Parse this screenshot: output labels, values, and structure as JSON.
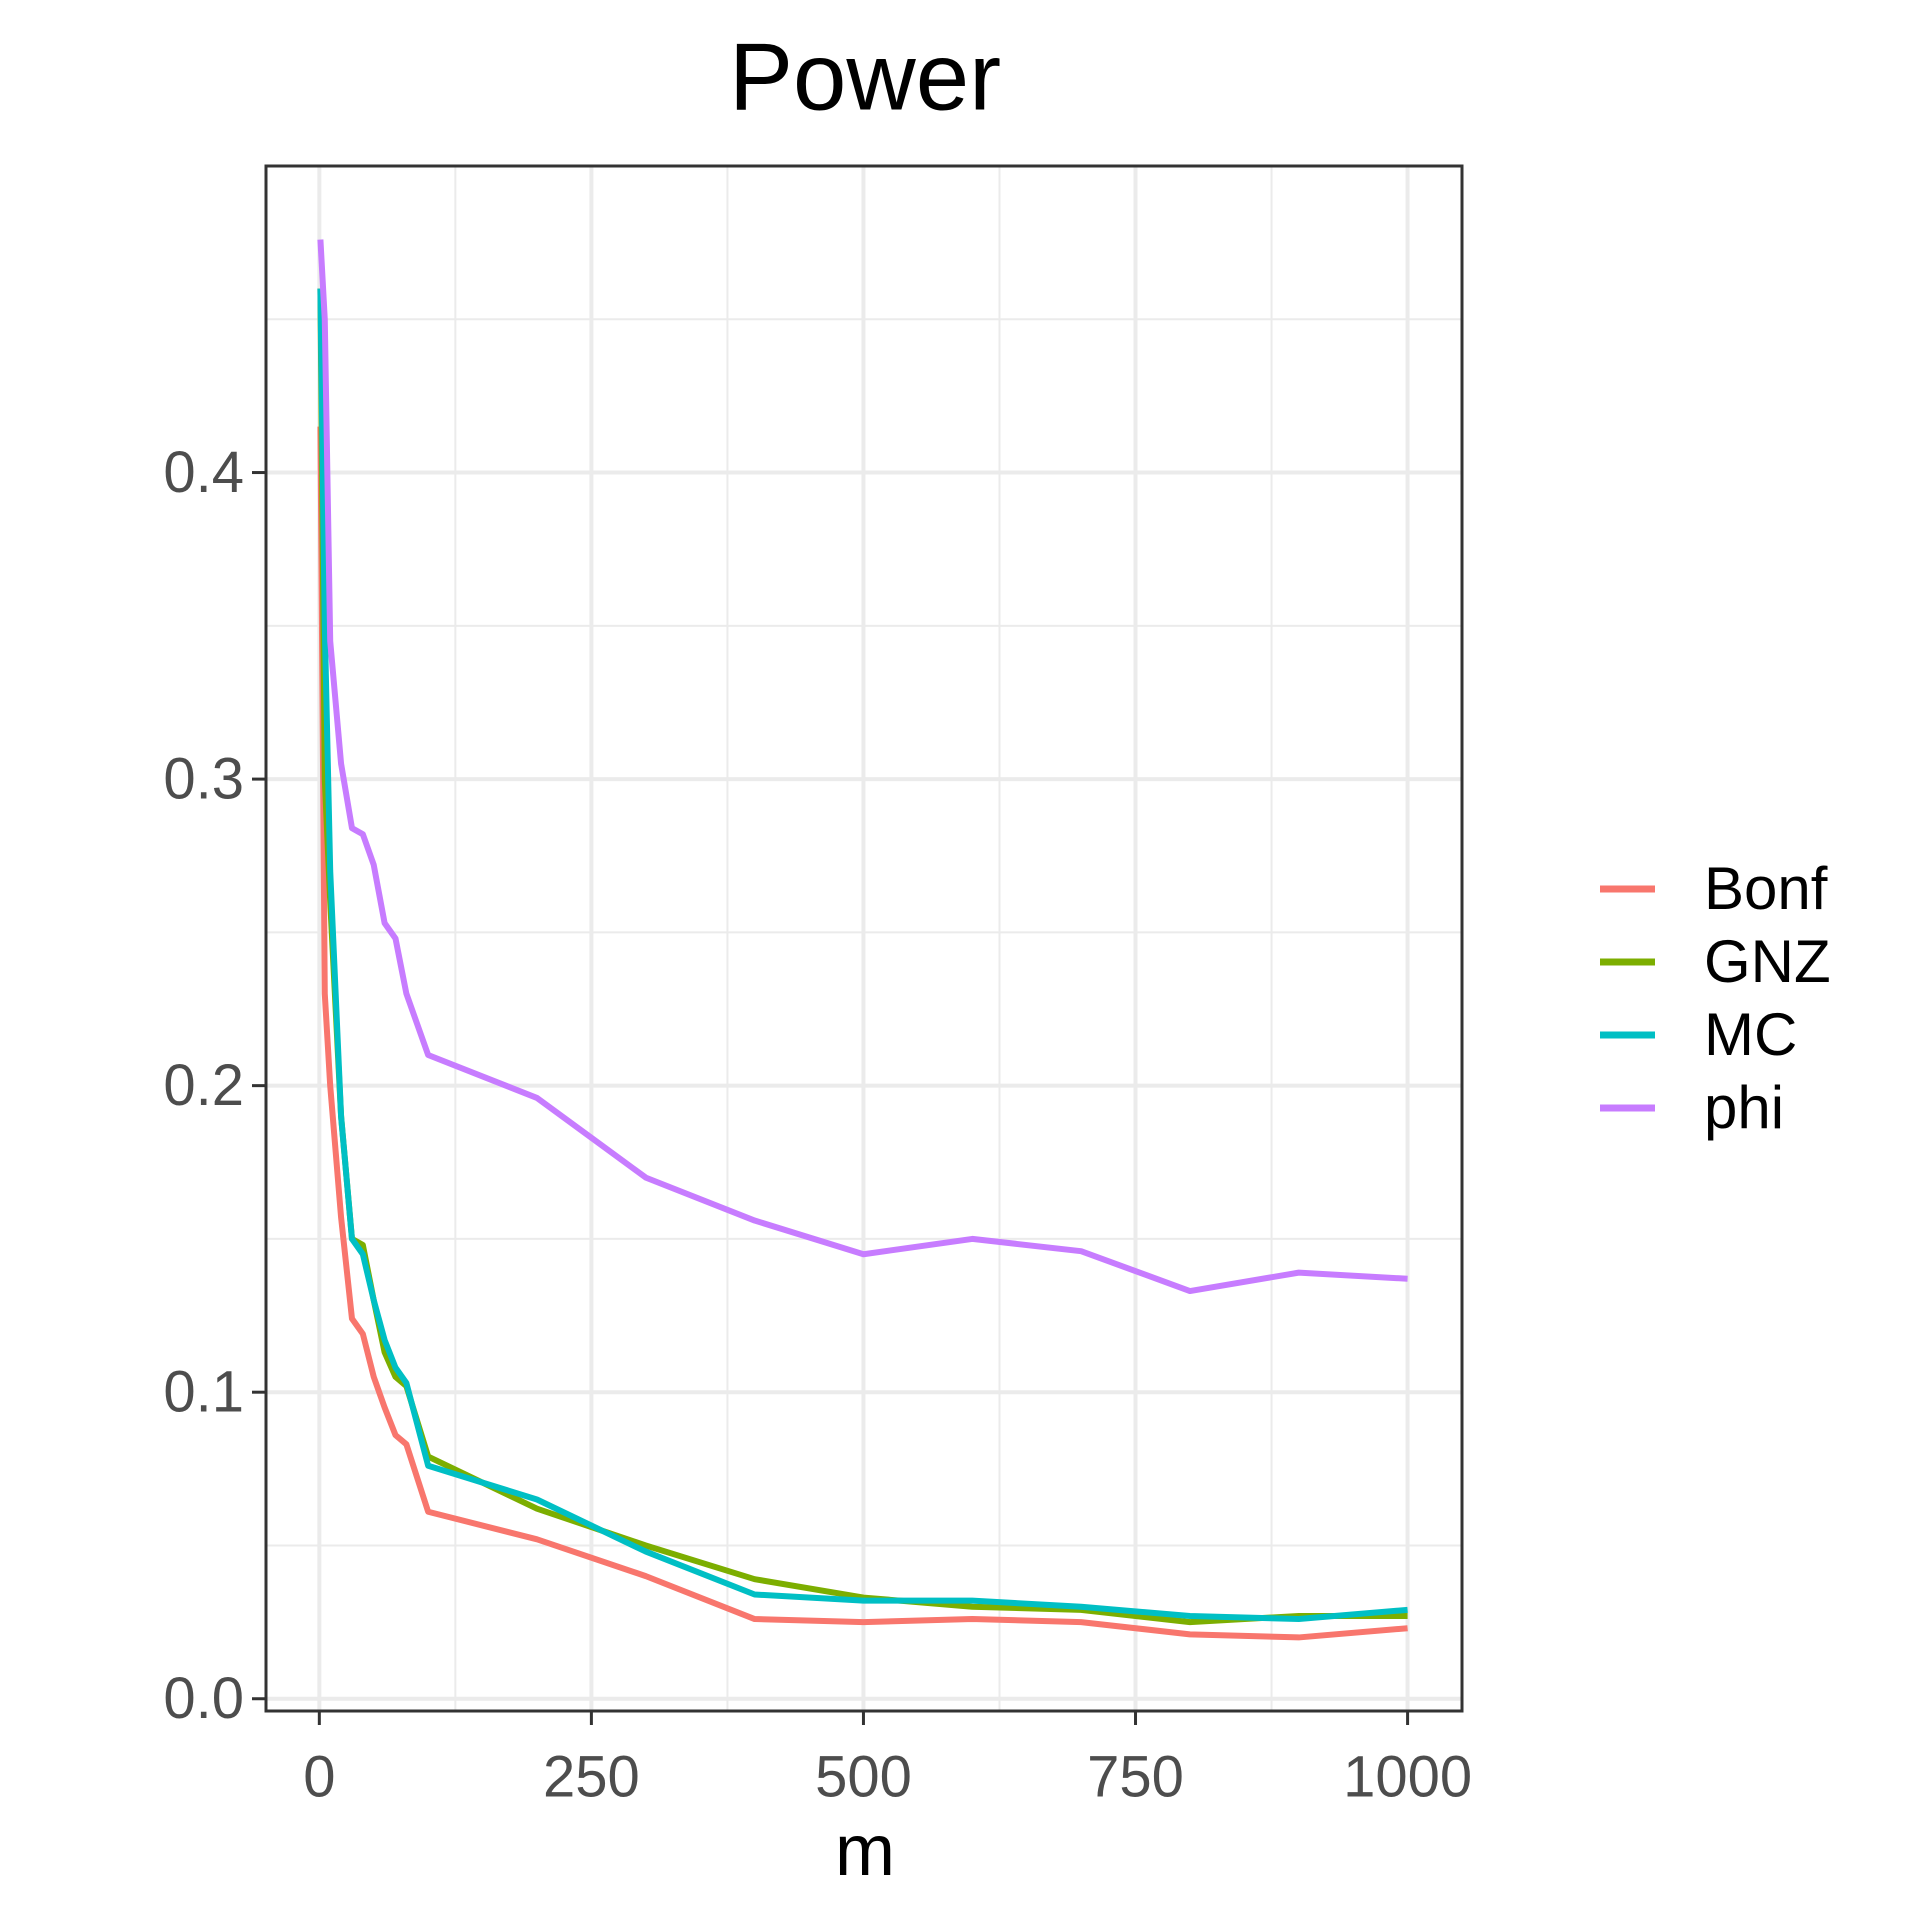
{
  "chart_data": {
    "type": "line",
    "title": "Power",
    "x_label": "m",
    "x": [
      1,
      5,
      10,
      20,
      30,
      40,
      50,
      60,
      70,
      80,
      100,
      200,
      300,
      400,
      500,
      600,
      700,
      800,
      900,
      1000
    ],
    "series": [
      {
        "name": "Bonf",
        "color": "#F8766D",
        "values": [
          0.415,
          0.23,
          0.2,
          0.157,
          0.124,
          0.119,
          0.105,
          0.095,
          0.086,
          0.083,
          0.061,
          0.052,
          0.04,
          0.026,
          0.025,
          0.026,
          0.025,
          0.021,
          0.02,
          0.023
        ]
      },
      {
        "name": "GNZ",
        "color": "#7CAE00",
        "values": [
          0.46,
          0.3,
          0.26,
          0.19,
          0.15,
          0.148,
          0.13,
          0.113,
          0.105,
          0.102,
          0.079,
          0.062,
          0.05,
          0.039,
          0.033,
          0.03,
          0.029,
          0.025,
          0.027,
          0.027
        ]
      },
      {
        "name": "MC",
        "color": "#00BFC4",
        "values": [
          0.46,
          0.35,
          0.27,
          0.19,
          0.15,
          0.145,
          0.13,
          0.117,
          0.108,
          0.103,
          0.076,
          0.065,
          0.048,
          0.034,
          0.032,
          0.032,
          0.03,
          0.027,
          0.026,
          0.029
        ]
      },
      {
        "name": "phi",
        "color": "#C77CFF",
        "values": [
          0.476,
          0.45,
          0.345,
          0.305,
          0.284,
          0.282,
          0.272,
          0.253,
          0.248,
          0.23,
          0.21,
          0.196,
          0.17,
          0.156,
          0.145,
          0.15,
          0.146,
          0.133,
          0.139,
          0.137
        ]
      }
    ],
    "xlim": [
      -49,
      1050
    ],
    "ylim": [
      -0.004,
      0.5
    ],
    "xticks": [
      0,
      250,
      500,
      750,
      1000
    ],
    "yticks": [
      {
        "value": 0,
        "label": "0.0"
      },
      0.1,
      0.2,
      0.3,
      0.4
    ],
    "minor_xticks": [
      125,
      375,
      625,
      875
    ],
    "minor_yticks": [
      0.05,
      0.15,
      0.25,
      0.35,
      0.45
    ],
    "grid": true,
    "legend": "right"
  }
}
